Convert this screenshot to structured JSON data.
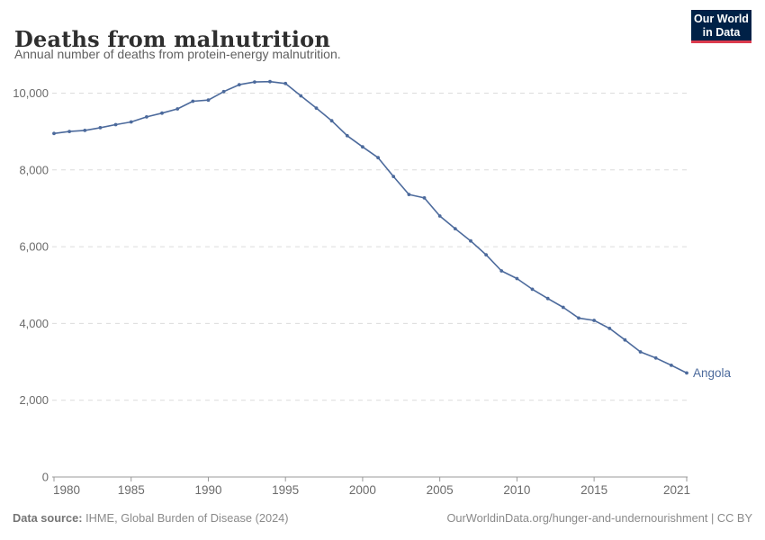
{
  "header": {
    "title": "Deaths from malnutrition",
    "subtitle": "Annual number of deaths from protein-energy malnutrition.",
    "logo": {
      "line1": "Our World",
      "line2": "in Data",
      "bg_color": "#002147",
      "bar_color": "#dc3b4e"
    }
  },
  "chart_data": {
    "type": "line",
    "title": "Deaths from malnutrition",
    "subtitle": "Annual number of deaths from protein-energy malnutrition.",
    "x": [
      1980,
      1981,
      1982,
      1983,
      1984,
      1985,
      1986,
      1987,
      1988,
      1989,
      1990,
      1991,
      1992,
      1993,
      1994,
      1995,
      1996,
      1997,
      1998,
      1999,
      2000,
      2001,
      2002,
      2003,
      2004,
      2005,
      2006,
      2007,
      2008,
      2009,
      2010,
      2011,
      2012,
      2013,
      2014,
      2015,
      2016,
      2017,
      2018,
      2019,
      2020,
      2021
    ],
    "series": [
      {
        "name": "Angola",
        "color": "#4C6A9C",
        "values": [
          8950,
          9000,
          9030,
          9100,
          9180,
          9250,
          9380,
          9480,
          9590,
          9790,
          9820,
          10040,
          10220,
          10290,
          10300,
          10250,
          9930,
          9610,
          9280,
          8890,
          8600,
          8320,
          7830,
          7360,
          7270,
          6800,
          6470,
          6150,
          5790,
          5370,
          5170,
          4890,
          4650,
          4420,
          4140,
          4080,
          3870,
          3570,
          3260,
          3100,
          2910,
          2710
        ]
      }
    ],
    "xlim": [
      1980,
      2021
    ],
    "ylim": [
      0,
      10400
    ],
    "xlabel": "",
    "ylabel": "",
    "grid": "horizontal-dashed",
    "legend": "series-label-at-line-end",
    "x_ticks": [
      {
        "value": 1980,
        "label": "1980"
      },
      {
        "value": 1985,
        "label": "1985"
      },
      {
        "value": 1990,
        "label": "1990"
      },
      {
        "value": 1995,
        "label": "1995"
      },
      {
        "value": 2000,
        "label": "2000"
      },
      {
        "value": 2005,
        "label": "2005"
      },
      {
        "value": 2010,
        "label": "2010"
      },
      {
        "value": 2015,
        "label": "2015"
      },
      {
        "value": 2021,
        "label": "2021"
      }
    ],
    "y_ticks": [
      {
        "value": 0,
        "label": "0"
      },
      {
        "value": 2000,
        "label": "2,000"
      },
      {
        "value": 4000,
        "label": "4,000"
      },
      {
        "value": 6000,
        "label": "6,000"
      },
      {
        "value": 8000,
        "label": "8,000"
      },
      {
        "value": 10000,
        "label": "10,000"
      }
    ],
    "colors": {
      "gridline": "#dcdcdc",
      "axis": "#999999",
      "tick_label": "#6b6b6b"
    }
  },
  "footer": {
    "datasource_label": "Data source:",
    "datasource_text": " IHME, Global Burden of Disease (2024)",
    "link": "OurWorldinData.org/hunger-and-undernourishment | CC BY"
  }
}
